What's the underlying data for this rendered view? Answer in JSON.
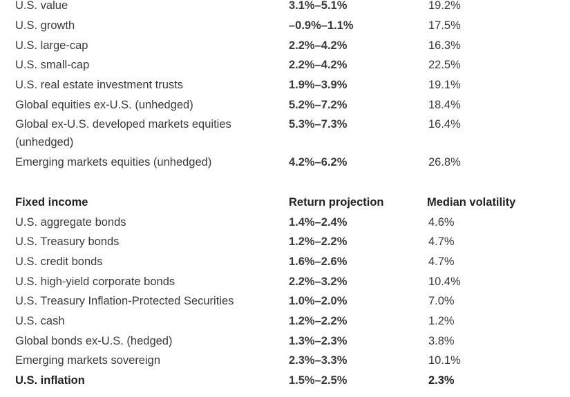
{
  "sections": [
    {
      "rows": [
        [
          "U.S. value",
          "3.1%–5.1%",
          "19.2%"
        ],
        [
          "U.S. growth",
          "–0.9%–1.1%",
          "17.5%"
        ],
        [
          "U.S. large-cap",
          "2.2%–4.2%",
          "16.3%"
        ],
        [
          "U.S. small-cap",
          "2.2%–4.2%",
          "22.5%"
        ],
        [
          "U.S. real estate investment trusts",
          "1.9%–3.9%",
          "19.1%"
        ],
        [
          "Global equities ex-U.S. (unhedged)",
          "5.2%–7.2%",
          "18.4%"
        ],
        [
          "Global ex-U.S. developed markets equities (unhedged)",
          "5.3%–7.3%",
          "16.4%"
        ],
        [
          "Emerging markets equities (unhedged)",
          "4.2%–6.2%",
          "26.8%"
        ]
      ]
    },
    {
      "header": [
        "Fixed income",
        "Return projection",
        "Median volatility"
      ],
      "rows": [
        [
          "U.S. aggregate bonds",
          "1.4%–2.4%",
          "4.6%"
        ],
        [
          "U.S. Treasury bonds",
          "1.2%–2.2%",
          "4.7%"
        ],
        [
          "U.S. credit bonds",
          "1.6%–2.6%",
          "4.7%"
        ],
        [
          "U.S. high-yield corporate bonds",
          "2.2%–3.2%",
          "10.4%"
        ],
        [
          "U.S. Treasury Inflation-Protected Securities",
          "1.0%–2.0%",
          "7.0%"
        ],
        [
          "U.S. cash",
          "1.2%–2.2%",
          "1.2%"
        ],
        [
          "Global bonds ex-U.S. (hedged)",
          "1.3%–2.3%",
          "3.8%"
        ],
        [
          "Emerging markets sovereign",
          "2.3%–3.3%",
          "10.1%"
        ],
        [
          "U.S. inflation",
          "1.5%–2.5%",
          "2.3%"
        ]
      ]
    }
  ]
}
